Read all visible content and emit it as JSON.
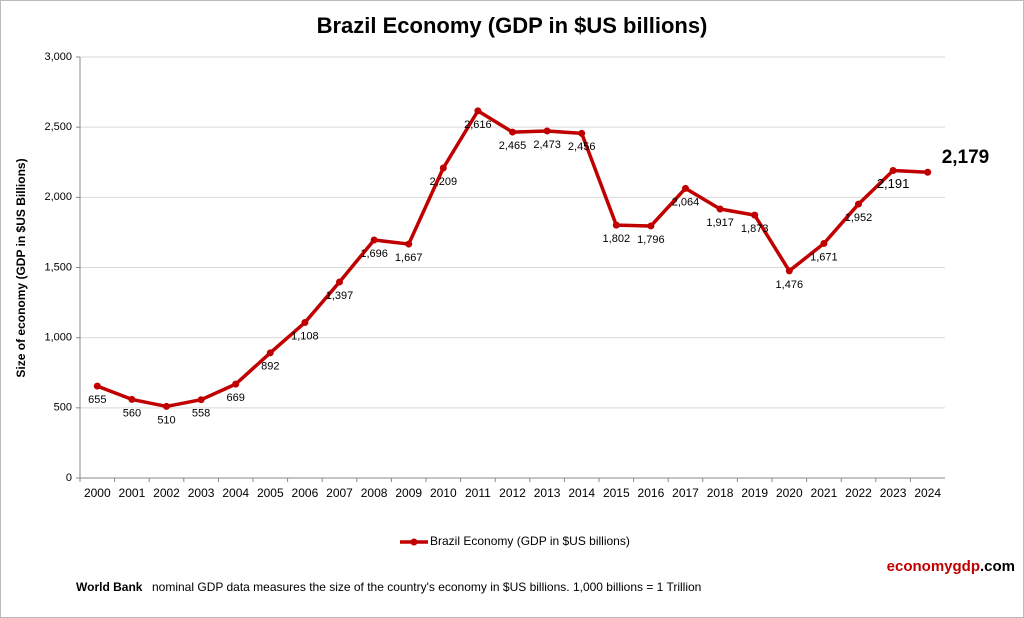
{
  "chart_data": {
    "type": "line",
    "title": "Brazil Economy (GDP in $US billions)",
    "y_label": "Size of economy (GDP in $US Billions)",
    "categories": [
      "2000",
      "2001",
      "2002",
      "2003",
      "2004",
      "2005",
      "2006",
      "2007",
      "2008",
      "2009",
      "2010",
      "2011",
      "2012",
      "2013",
      "2014",
      "2015",
      "2016",
      "2017",
      "2018",
      "2019",
      "2020",
      "2021",
      "2022",
      "2023",
      "2024"
    ],
    "series": [
      {
        "name": "Brazil Economy (GDP in $US billions)",
        "color": "#c00000",
        "values": [
          655,
          560,
          510,
          558,
          669,
          892,
          1108,
          1397,
          1696,
          1667,
          2209,
          2616,
          2465,
          2473,
          2456,
          1802,
          1796,
          2064,
          1917,
          1873,
          1476,
          1671,
          1952,
          2191,
          2179
        ],
        "value_labels": [
          "655",
          "560",
          "510",
          "558",
          "669",
          "892",
          "1,108",
          "1,397",
          "1,696",
          "1,667",
          "2,209",
          "2,616",
          "2,465",
          "2,473",
          "2,456",
          "1,802",
          "1,796",
          "2,064",
          "1,917",
          "1,873",
          "1,476",
          "1,671",
          "1,952",
          "2,191",
          "2,179"
        ]
      }
    ],
    "ylim": [
      0,
      3000
    ],
    "yticks": [
      0,
      500,
      {
        "value": 1000,
        "label": "1,000"
      },
      {
        "value": 1500,
        "label": "1,500"
      },
      {
        "value": 2000,
        "label": "2,000"
      },
      {
        "value": 2500,
        "label": "2,500"
      },
      {
        "value": 3000,
        "label": "3,000"
      }
    ],
    "grid": true,
    "legend": "bottom"
  },
  "footer": {
    "source": "World Bank",
    "text": "nominal GDP data  measures the size of the country's economy in $US billions. 1,000 billions = 1 Trillion"
  },
  "brand": {
    "name": "economygdp",
    "suffix": ".com"
  }
}
